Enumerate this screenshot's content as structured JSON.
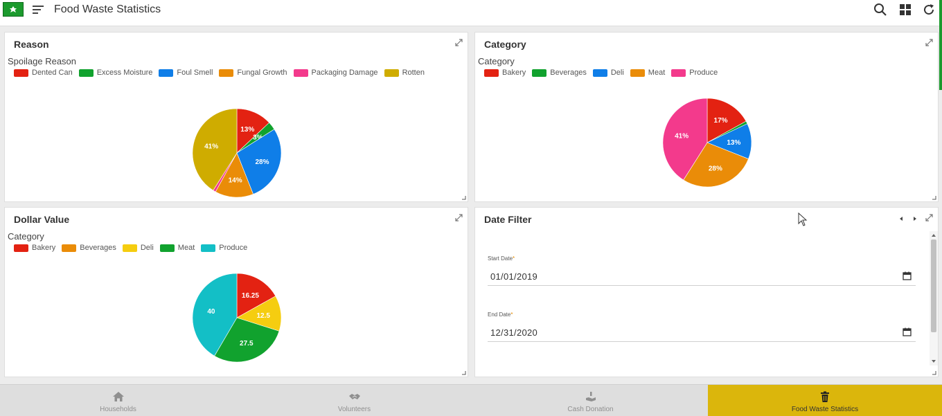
{
  "app": {
    "title": "Food Waste Statistics"
  },
  "colors": {
    "accent": "#dbb60c",
    "brand": "#1c9a2e"
  },
  "panels": {
    "reason": {
      "title": "Reason",
      "chart_label": "Spoilage Reason"
    },
    "category": {
      "title": "Category",
      "chart_label": "Category"
    },
    "dollar": {
      "title": "Dollar Value",
      "chart_label": "Category"
    },
    "date_filter": {
      "title": "Date Filter",
      "start_label": "Start Date",
      "start_value": "01/01/2019",
      "end_label": "End Date",
      "end_value": "12/31/2020",
      "required_mark": "*"
    }
  },
  "chart_data": [
    {
      "id": "reason",
      "type": "pie",
      "title": "Spoilage Reason",
      "categories": [
        "Dented Can",
        "Excess Moisture",
        "Foul Smell",
        "Fungal Growth",
        "Packaging Damage",
        "Rotten"
      ],
      "values": [
        13,
        3,
        28,
        14,
        1,
        41
      ],
      "labels": [
        "13%",
        "3%",
        "28%",
        "14%",
        "",
        "41%"
      ],
      "colors": [
        "#e32212",
        "#11a22e",
        "#0f7ee8",
        "#ea8c08",
        "#f33a8c",
        "#cfac00"
      ],
      "legend": "top-left"
    },
    {
      "id": "category",
      "type": "pie",
      "title": "Category",
      "categories": [
        "Bakery",
        "Beverages",
        "Deli",
        "Meat",
        "Produce"
      ],
      "values": [
        17,
        1,
        13,
        28,
        41
      ],
      "labels": [
        "17%",
        "",
        "13%",
        "28%",
        "41%"
      ],
      "colors": [
        "#e32212",
        "#11a22e",
        "#0f7ee8",
        "#ea8c08",
        "#f33a8c"
      ],
      "legend": "top-left"
    },
    {
      "id": "dollar",
      "type": "pie",
      "title": "Category",
      "categories": [
        "Bakery",
        "Beverages",
        "Deli",
        "Meat",
        "Produce"
      ],
      "values": [
        16.25,
        0,
        12.5,
        27.5,
        40
      ],
      "labels": [
        "16.25",
        "",
        "12.5",
        "27.5",
        "40"
      ],
      "colors": [
        "#e32212",
        "#ea8c08",
        "#f5cd10",
        "#11a22e",
        "#13bfc6"
      ],
      "legend": "top-left"
    }
  ],
  "bottom_nav": {
    "items": [
      {
        "label": "Households",
        "icon": "home-icon"
      },
      {
        "label": "Volunteers",
        "icon": "handshake-icon"
      },
      {
        "label": "Cash Donation",
        "icon": "donation-icon"
      },
      {
        "label": "Food Waste Statistics",
        "icon": "trash-icon"
      }
    ],
    "active": 3
  }
}
